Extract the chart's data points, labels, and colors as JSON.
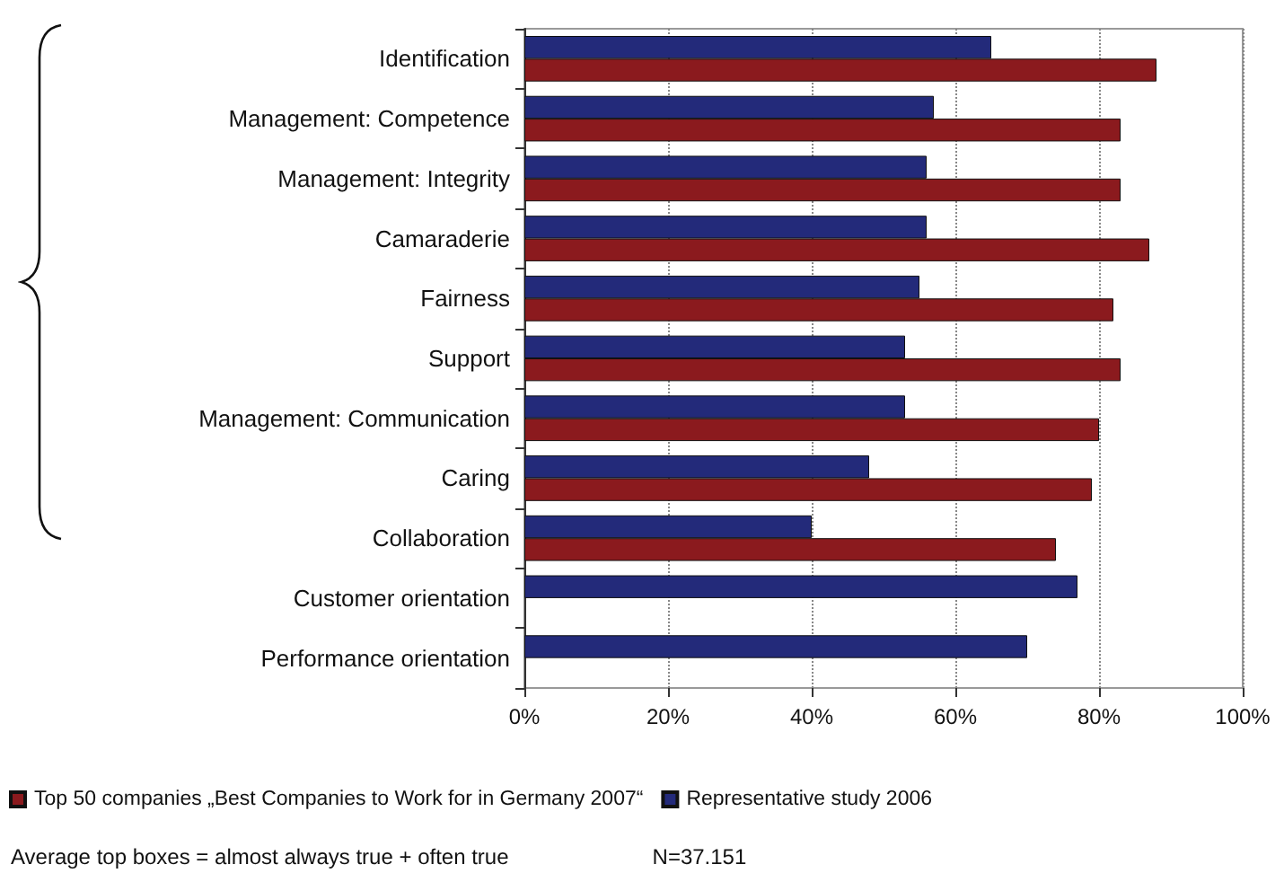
{
  "chart_data": {
    "type": "bar",
    "orientation": "horizontal",
    "categories": [
      "Identification",
      "Management: Competence",
      "Management: Integrity",
      "Camaraderie",
      "Fairness",
      "Support",
      "Management: Communication",
      "Caring",
      "Collaboration",
      "Customer orientation",
      "Performance orientation"
    ],
    "series": [
      {
        "name": "Representative study 2006",
        "color": "#232a7a",
        "values": [
          65,
          57,
          56,
          56,
          55,
          53,
          53,
          48,
          40,
          77,
          70
        ]
      },
      {
        "name": "Top 50 companies „Best Companies to Work for in Germany 2007“",
        "color": "#8b1a1e",
        "values": [
          88,
          83,
          83,
          87,
          82,
          83,
          80,
          79,
          74,
          null,
          null
        ]
      }
    ],
    "xlim": [
      0,
      100
    ],
    "xticks": [
      {
        "value": 0,
        "label": "0%"
      },
      {
        "value": 20,
        "label": "20%"
      },
      {
        "value": 40,
        "label": "40%"
      },
      {
        "value": 60,
        "label": "60%"
      },
      {
        "value": 80,
        "label": "80%"
      },
      {
        "value": 100,
        "label": "100%"
      }
    ],
    "grid": "x",
    "legend": "bottom left",
    "annotations": [
      "Average top boxes = almost always true + often true",
      "N=37.151"
    ]
  }
}
